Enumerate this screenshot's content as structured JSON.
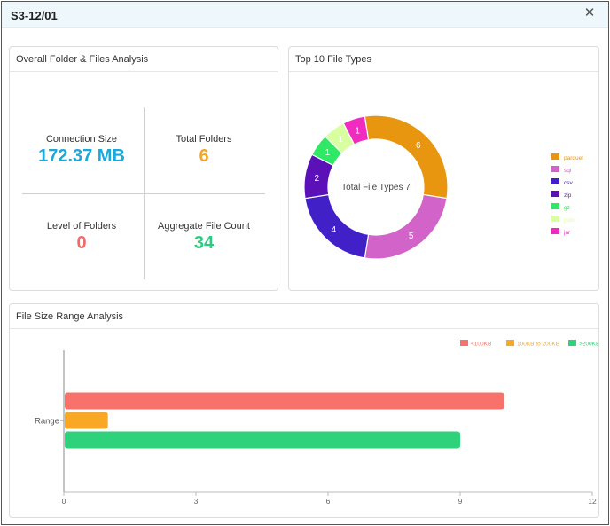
{
  "window": {
    "title": "S3-12/01",
    "close_glyph": "✕"
  },
  "overview": {
    "title": "Overall Folder & Files Analysis",
    "connection_size": {
      "label": "Connection Size",
      "value": "172.37 MB",
      "color": "#1aa9dc"
    },
    "total_folders": {
      "label": "Total Folders",
      "value": "6",
      "color": "#f5a623"
    },
    "level_of_folders": {
      "label": "Level of Folders",
      "value": "0",
      "color": "#ef6b6b"
    },
    "aggregate_file_count": {
      "label": "Aggregate File Count",
      "value": "34",
      "color": "#2ecc80"
    }
  },
  "file_types": {
    "title": "Top 10 File Types",
    "center_label": "Total File Types 7"
  },
  "size_range": {
    "title": "File Size Range Analysis"
  },
  "chart_data": [
    {
      "type": "pie",
      "title": "Top 10 File Types",
      "labels": [
        "parquet",
        "sql",
        "csv",
        "zip",
        "gz",
        "json",
        "jar"
      ],
      "values": [
        6,
        5,
        4,
        2,
        1,
        1,
        1
      ],
      "colors": [
        "#e8960f",
        "#d263c8",
        "#4120c8",
        "#5b10b8",
        "#2fe866",
        "#d8ffa0",
        "#f02cc0"
      ],
      "legend": "right",
      "donut": true
    },
    {
      "type": "bar",
      "orientation": "horizontal",
      "title": "File Size Range Analysis",
      "categories": [
        "Range"
      ],
      "series": [
        {
          "name": "<100KB",
          "values": [
            10
          ],
          "color": "#f8716a"
        },
        {
          "name": "100KB to 200KB",
          "values": [
            1
          ],
          "color": "#f8a825"
        },
        {
          "name": ">200KB",
          "values": [
            9
          ],
          "color": "#2ed27a"
        }
      ],
      "xlim": [
        0,
        12
      ],
      "xticks": [
        "0",
        "3",
        "6",
        "9",
        "12"
      ],
      "legend": "top-right",
      "grid": false
    }
  ]
}
